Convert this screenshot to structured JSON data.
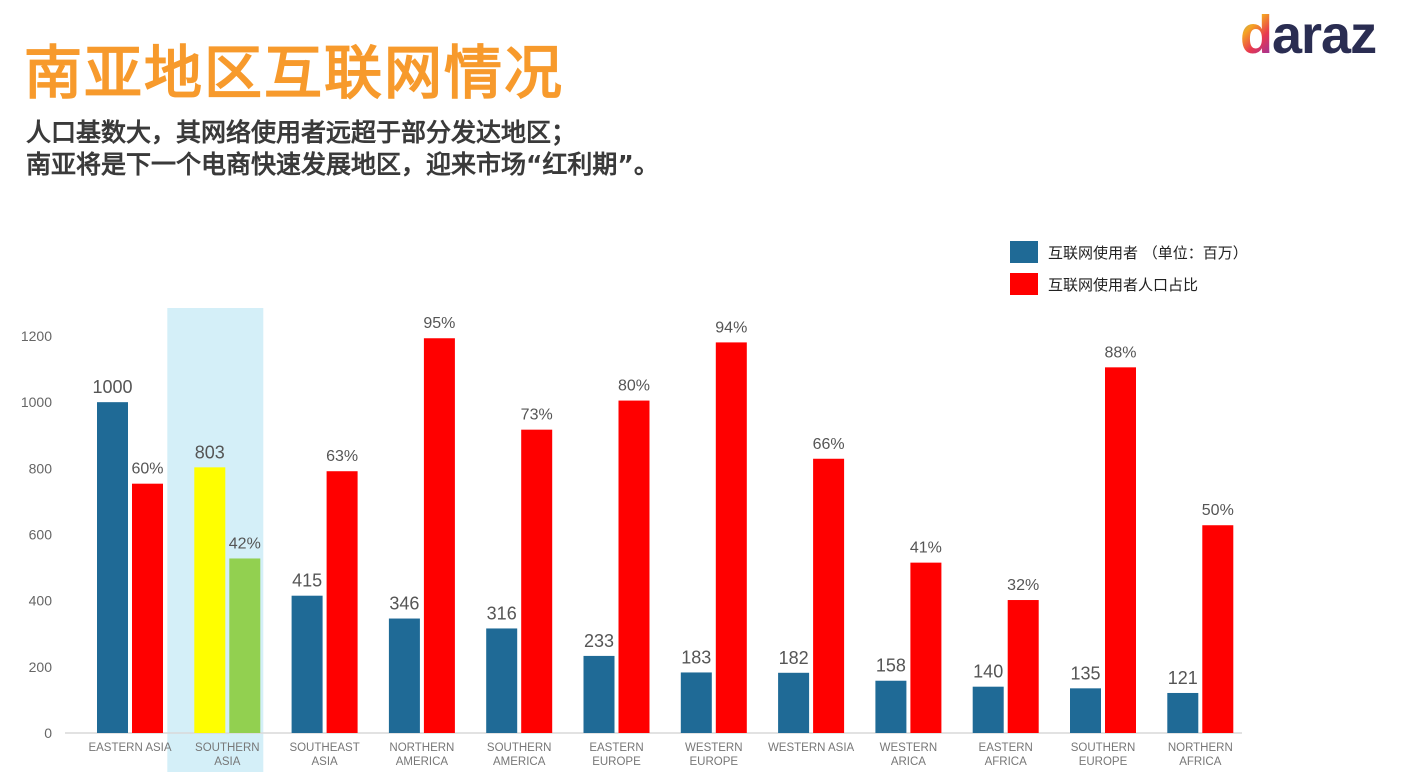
{
  "title": "南亚地区互联网情况",
  "subtitle_lines": [
    "人口基数大，其网络使用者远超于部分发达地区；",
    "南亚将是下一个电商快速发展地区，迎来市场“红利期”。"
  ],
  "logo": "daraz",
  "colors": {
    "title": "#f79a2c",
    "users": "#1f6a96",
    "share": "#ff0000",
    "highlight_users": "#ffff00",
    "highlight_share": "#92d050",
    "highlight_bg": "#d4eff8"
  },
  "chart_data": {
    "type": "bar",
    "categories": [
      "EASTERN ASIA",
      "SOUTHERN ASIA",
      "SOUTHEAST ASIA",
      "NORTHERN AMERICA",
      "SOUTHERN AMERICA",
      "EASTERN EUROPE",
      "WESTERN EUROPE",
      "WESTERN ASIA",
      "WESTERN ARICA",
      "EASTERN AFRICA",
      "SOUTHERN EUROPE",
      "NORTHERN AFRICA"
    ],
    "category_lines": [
      [
        "EASTERN ASIA"
      ],
      [
        "SOUTHERN",
        "ASIA"
      ],
      [
        "SOUTHEAST",
        "ASIA"
      ],
      [
        "NORTHERN",
        "AMERICA"
      ],
      [
        "SOUTHERN",
        "AMERICA"
      ],
      [
        "EASTERN",
        "EUROPE"
      ],
      [
        "WESTERN",
        "EUROPE"
      ],
      [
        "WESTERN ASIA"
      ],
      [
        "WESTERN",
        "ARICA"
      ],
      [
        "EASTERN",
        "AFRICA"
      ],
      [
        "SOUTHERN",
        "EUROPE"
      ],
      [
        "NORTHERN",
        "AFRICA"
      ]
    ],
    "highlighted_category": "SOUTHERN ASIA",
    "series": [
      {
        "name": "互联网使用者 （单位：百万）",
        "values": [
          1000,
          803,
          415,
          346,
          316,
          233,
          183,
          182,
          158,
          140,
          135,
          121
        ],
        "labels": [
          "1000",
          "803",
          "415",
          "346",
          "316",
          "233",
          "183",
          "182",
          "158",
          "140",
          "135",
          "121"
        ]
      },
      {
        "name": "互联网使用者人口占比",
        "values": [
          60,
          42,
          63,
          95,
          73,
          80,
          94,
          66,
          41,
          32,
          88,
          50
        ],
        "labels": [
          "60%",
          "42%",
          "63%",
          "95%",
          "73%",
          "80%",
          "94%",
          "66%",
          "41%",
          "32%",
          "88%",
          "50%"
        ]
      }
    ],
    "yticks": [
      "0",
      "200",
      "400",
      "600",
      "800",
      "1000",
      "1200"
    ],
    "ylim": [
      0,
      1200
    ],
    "grid": false,
    "legend": "top-right"
  }
}
